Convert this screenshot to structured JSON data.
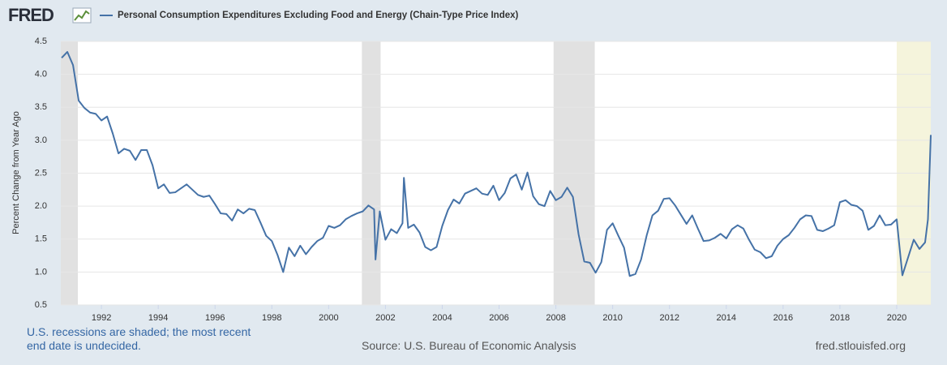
{
  "brand": "FRED",
  "chart_data": {
    "type": "line",
    "ylabel": "Percent Change from Year Ago",
    "x": [
      1990.6,
      1990.8,
      1991.0,
      1991.2,
      1991.4,
      1991.6,
      1991.8,
      1992.0,
      1992.2,
      1992.4,
      1992.6,
      1992.8,
      1993.0,
      1993.2,
      1993.4,
      1993.6,
      1993.8,
      1994.0,
      1994.2,
      1994.4,
      1994.6,
      1994.8,
      1995.0,
      1995.2,
      1995.4,
      1995.6,
      1995.8,
      1996.0,
      1996.2,
      1996.4,
      1996.6,
      1996.8,
      1997.0,
      1997.2,
      1997.4,
      1997.6,
      1997.8,
      1998.0,
      1998.2,
      1998.4,
      1998.6,
      1998.8,
      1999.0,
      1999.2,
      1999.4,
      1999.6,
      1999.8,
      2000.0,
      2000.2,
      2000.4,
      2000.6,
      2000.8,
      2001.0,
      2001.2,
      2001.4,
      2001.6,
      2001.65,
      2001.8,
      2002.0,
      2002.2,
      2002.4,
      2002.6,
      2002.65,
      2002.8,
      2003.0,
      2003.2,
      2003.4,
      2003.6,
      2003.8,
      2004.0,
      2004.2,
      2004.4,
      2004.6,
      2004.8,
      2005.0,
      2005.2,
      2005.4,
      2005.6,
      2005.8,
      2006.0,
      2006.2,
      2006.4,
      2006.6,
      2006.8,
      2007.0,
      2007.2,
      2007.4,
      2007.6,
      2007.8,
      2008.0,
      2008.2,
      2008.4,
      2008.6,
      2008.8,
      2009.0,
      2009.2,
      2009.4,
      2009.6,
      2009.8,
      2010.0,
      2010.2,
      2010.4,
      2010.6,
      2010.8,
      2011.0,
      2011.2,
      2011.4,
      2011.6,
      2011.8,
      2012.0,
      2012.2,
      2012.4,
      2012.6,
      2012.8,
      2013.0,
      2013.2,
      2013.4,
      2013.6,
      2013.8,
      2014.0,
      2014.2,
      2014.4,
      2014.6,
      2014.8,
      2015.0,
      2015.2,
      2015.4,
      2015.6,
      2015.8,
      2016.0,
      2016.2,
      2016.4,
      2016.6,
      2016.8,
      2017.0,
      2017.2,
      2017.4,
      2017.6,
      2017.8,
      2018.0,
      2018.2,
      2018.4,
      2018.6,
      2018.8,
      2019.0,
      2019.2,
      2019.4,
      2019.6,
      2019.8,
      2020.0,
      2020.2,
      2020.4,
      2020.6,
      2020.8,
      2021.0,
      2021.1,
      2021.2
    ],
    "series": [
      {
        "name": "Personal Consumption Expenditures Excluding Food and Energy (Chain-Type Price Index)",
        "color": "#4572a7",
        "values": [
          4.25,
          4.34,
          4.14,
          3.6,
          3.49,
          3.42,
          3.4,
          3.3,
          3.36,
          3.1,
          2.8,
          2.87,
          2.84,
          2.7,
          2.85,
          2.85,
          2.62,
          2.27,
          2.33,
          2.2,
          2.21,
          2.27,
          2.33,
          2.25,
          2.17,
          2.14,
          2.16,
          2.03,
          1.89,
          1.88,
          1.78,
          1.95,
          1.89,
          1.96,
          1.94,
          1.75,
          1.55,
          1.47,
          1.26,
          1.0,
          1.37,
          1.24,
          1.4,
          1.27,
          1.38,
          1.47,
          1.52,
          1.7,
          1.67,
          1.71,
          1.8,
          1.85,
          1.89,
          1.92,
          2.01,
          1.95,
          1.19,
          1.92,
          1.49,
          1.65,
          1.59,
          1.74,
          2.43,
          1.67,
          1.72,
          1.6,
          1.38,
          1.33,
          1.38,
          1.7,
          1.94,
          2.1,
          2.04,
          2.19,
          2.23,
          2.27,
          2.19,
          2.17,
          2.31,
          2.09,
          2.2,
          2.42,
          2.48,
          2.25,
          2.51,
          2.15,
          2.03,
          2.0,
          2.23,
          2.09,
          2.14,
          2.28,
          2.14,
          1.57,
          1.16,
          1.14,
          0.99,
          1.15,
          1.64,
          1.74,
          1.55,
          1.37,
          0.94,
          0.97,
          1.19,
          1.56,
          1.86,
          1.93,
          2.11,
          2.12,
          2.01,
          1.87,
          1.73,
          1.86,
          1.66,
          1.47,
          1.48,
          1.52,
          1.58,
          1.51,
          1.65,
          1.71,
          1.66,
          1.49,
          1.34,
          1.3,
          1.21,
          1.24,
          1.4,
          1.5,
          1.56,
          1.67,
          1.8,
          1.86,
          1.85,
          1.64,
          1.62,
          1.66,
          1.71,
          2.06,
          2.09,
          2.02,
          2.0,
          1.93,
          1.64,
          1.7,
          1.86,
          1.71,
          1.72,
          1.8,
          0.95,
          1.22,
          1.49,
          1.35,
          1.45,
          1.8,
          3.08
        ]
      }
    ],
    "recessions": [
      {
        "start": 1990.57,
        "end": 1991.17,
        "color": "#e1e1e1"
      },
      {
        "start": 2001.17,
        "end": 2001.83,
        "color": "#e1e1e1"
      },
      {
        "start": 2007.92,
        "end": 2009.37,
        "color": "#e1e1e1"
      },
      {
        "start": 2020.0,
        "end": 2021.2,
        "color": "#f5f4dc"
      }
    ],
    "xlim": [
      1990.57,
      2021.2
    ],
    "xticks": [
      1992,
      1994,
      1996,
      1998,
      2000,
      2002,
      2004,
      2006,
      2008,
      2010,
      2012,
      2014,
      2016,
      2018,
      2020
    ],
    "ylim": [
      0.5,
      4.5
    ],
    "yticks": [
      0.5,
      {
        "value": 1,
        "label": "1.0"
      },
      1.5,
      {
        "value": 2,
        "label": "2.0"
      },
      2.5,
      {
        "value": 3,
        "label": "3.0"
      },
      3.5,
      {
        "value": 4,
        "label": "4.0"
      },
      4.5
    ],
    "grid": true,
    "note": "U.S. recessions are shaded; the most recent end date is undecided.",
    "source": "Source: U.S. Bureau of Economic Analysis",
    "site": "fred.stlouisfed.org"
  }
}
